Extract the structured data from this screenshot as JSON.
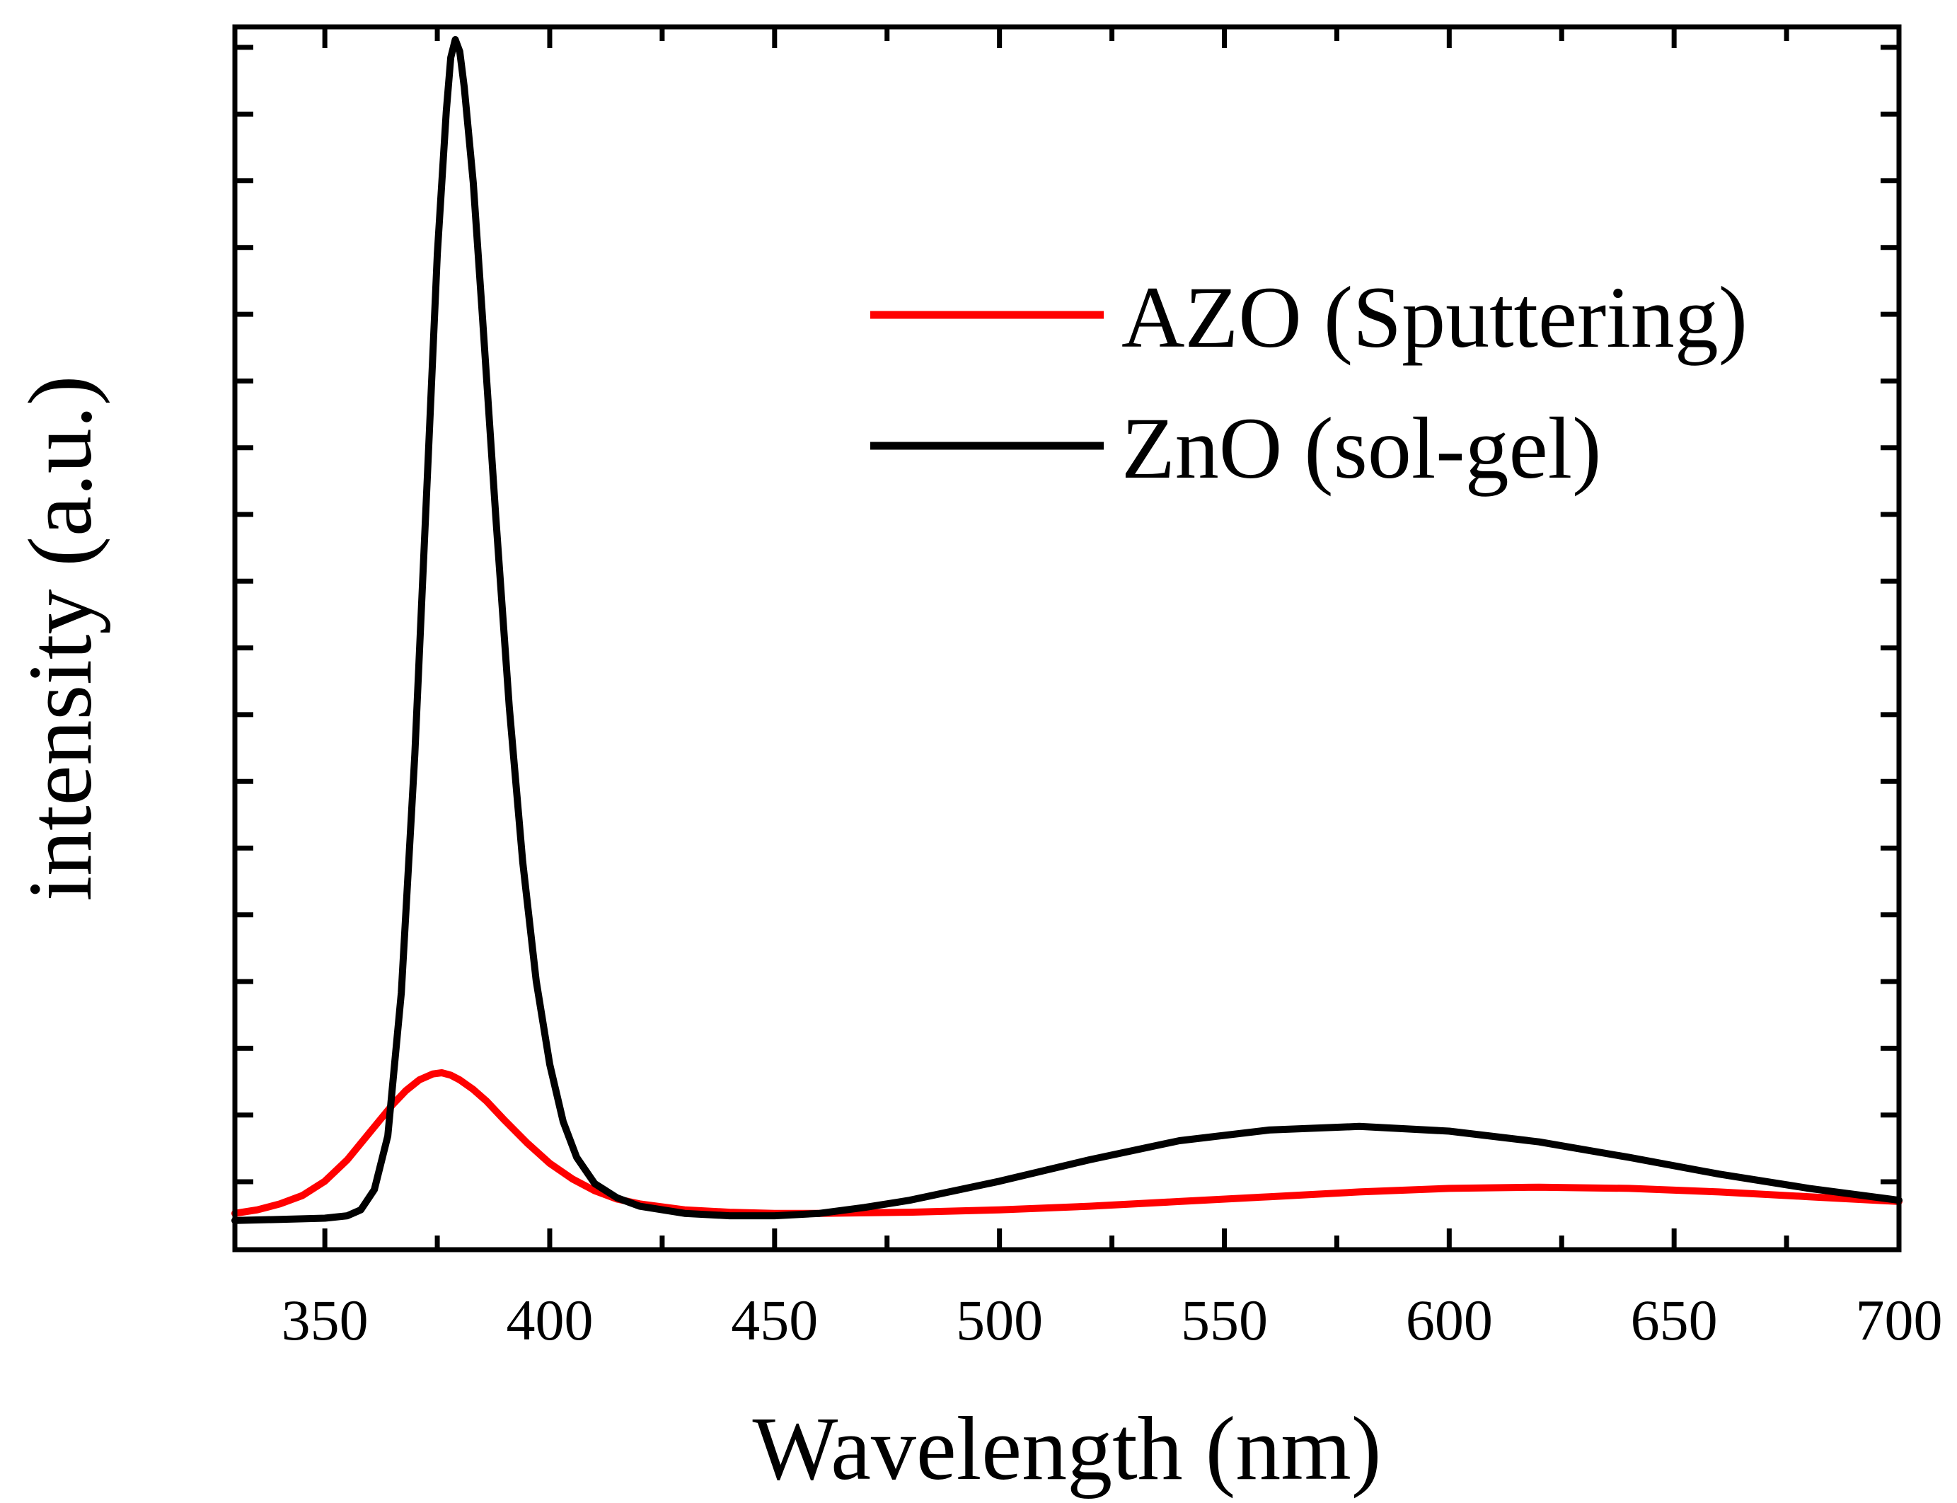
{
  "chart_data": {
    "type": "line",
    "title": "",
    "xlabel": "Wavelength (nm)",
    "ylabel": "intensity (a.u.)",
    "xlim": [
      330,
      700
    ],
    "ylim": [
      0,
      100
    ],
    "x_ticks": [
      "350",
      "400",
      "450",
      "500",
      "550",
      "600",
      "650",
      "700"
    ],
    "y_ticks_labeled": false,
    "grid": false,
    "legend_position": "top-right",
    "series": [
      {
        "name": "AZO (Sputtering)",
        "color": "#ff0000",
        "x": [
          330,
          335,
          340,
          345,
          350,
          355,
          360,
          365,
          368,
          371,
          374,
          376,
          378,
          380,
          383,
          386,
          390,
          395,
          400,
          405,
          410,
          415,
          420,
          430,
          440,
          450,
          460,
          480,
          500,
          520,
          540,
          560,
          580,
          600,
          620,
          640,
          660,
          680,
          700
        ],
        "y": [
          1.5,
          1.8,
          2.3,
          3.0,
          4.2,
          6.0,
          8.3,
          10.6,
          11.8,
          12.7,
          13.2,
          13.3,
          13.1,
          12.7,
          11.9,
          10.9,
          9.3,
          7.4,
          5.7,
          4.4,
          3.4,
          2.7,
          2.3,
          1.8,
          1.6,
          1.5,
          1.5,
          1.6,
          1.8,
          2.1,
          2.5,
          2.9,
          3.3,
          3.6,
          3.7,
          3.6,
          3.3,
          2.9,
          2.5
        ]
      },
      {
        "name": "ZnO (sol-gel)",
        "color": "#000000",
        "x": [
          330,
          340,
          350,
          355,
          358,
          361,
          364,
          367,
          370,
          373,
          375,
          377,
          378,
          379,
          380,
          381,
          383,
          385,
          388,
          391,
          394,
          397,
          400,
          403,
          406,
          410,
          415,
          420,
          430,
          440,
          450,
          460,
          470,
          480,
          500,
          520,
          540,
          560,
          580,
          600,
          620,
          640,
          660,
          680,
          700
        ],
        "y": [
          0.9,
          1.0,
          1.1,
          1.3,
          1.8,
          3.5,
          8.0,
          20.0,
          40.0,
          65.0,
          82.0,
          94.0,
          98.5,
          100.0,
          99.0,
          96.0,
          88.0,
          77.0,
          60.0,
          44.0,
          31.0,
          21.0,
          14.0,
          9.2,
          6.2,
          4.0,
          2.8,
          2.1,
          1.5,
          1.3,
          1.3,
          1.5,
          2.0,
          2.6,
          4.2,
          6.0,
          7.6,
          8.5,
          8.8,
          8.4,
          7.5,
          6.2,
          4.8,
          3.6,
          2.6
        ]
      }
    ]
  }
}
